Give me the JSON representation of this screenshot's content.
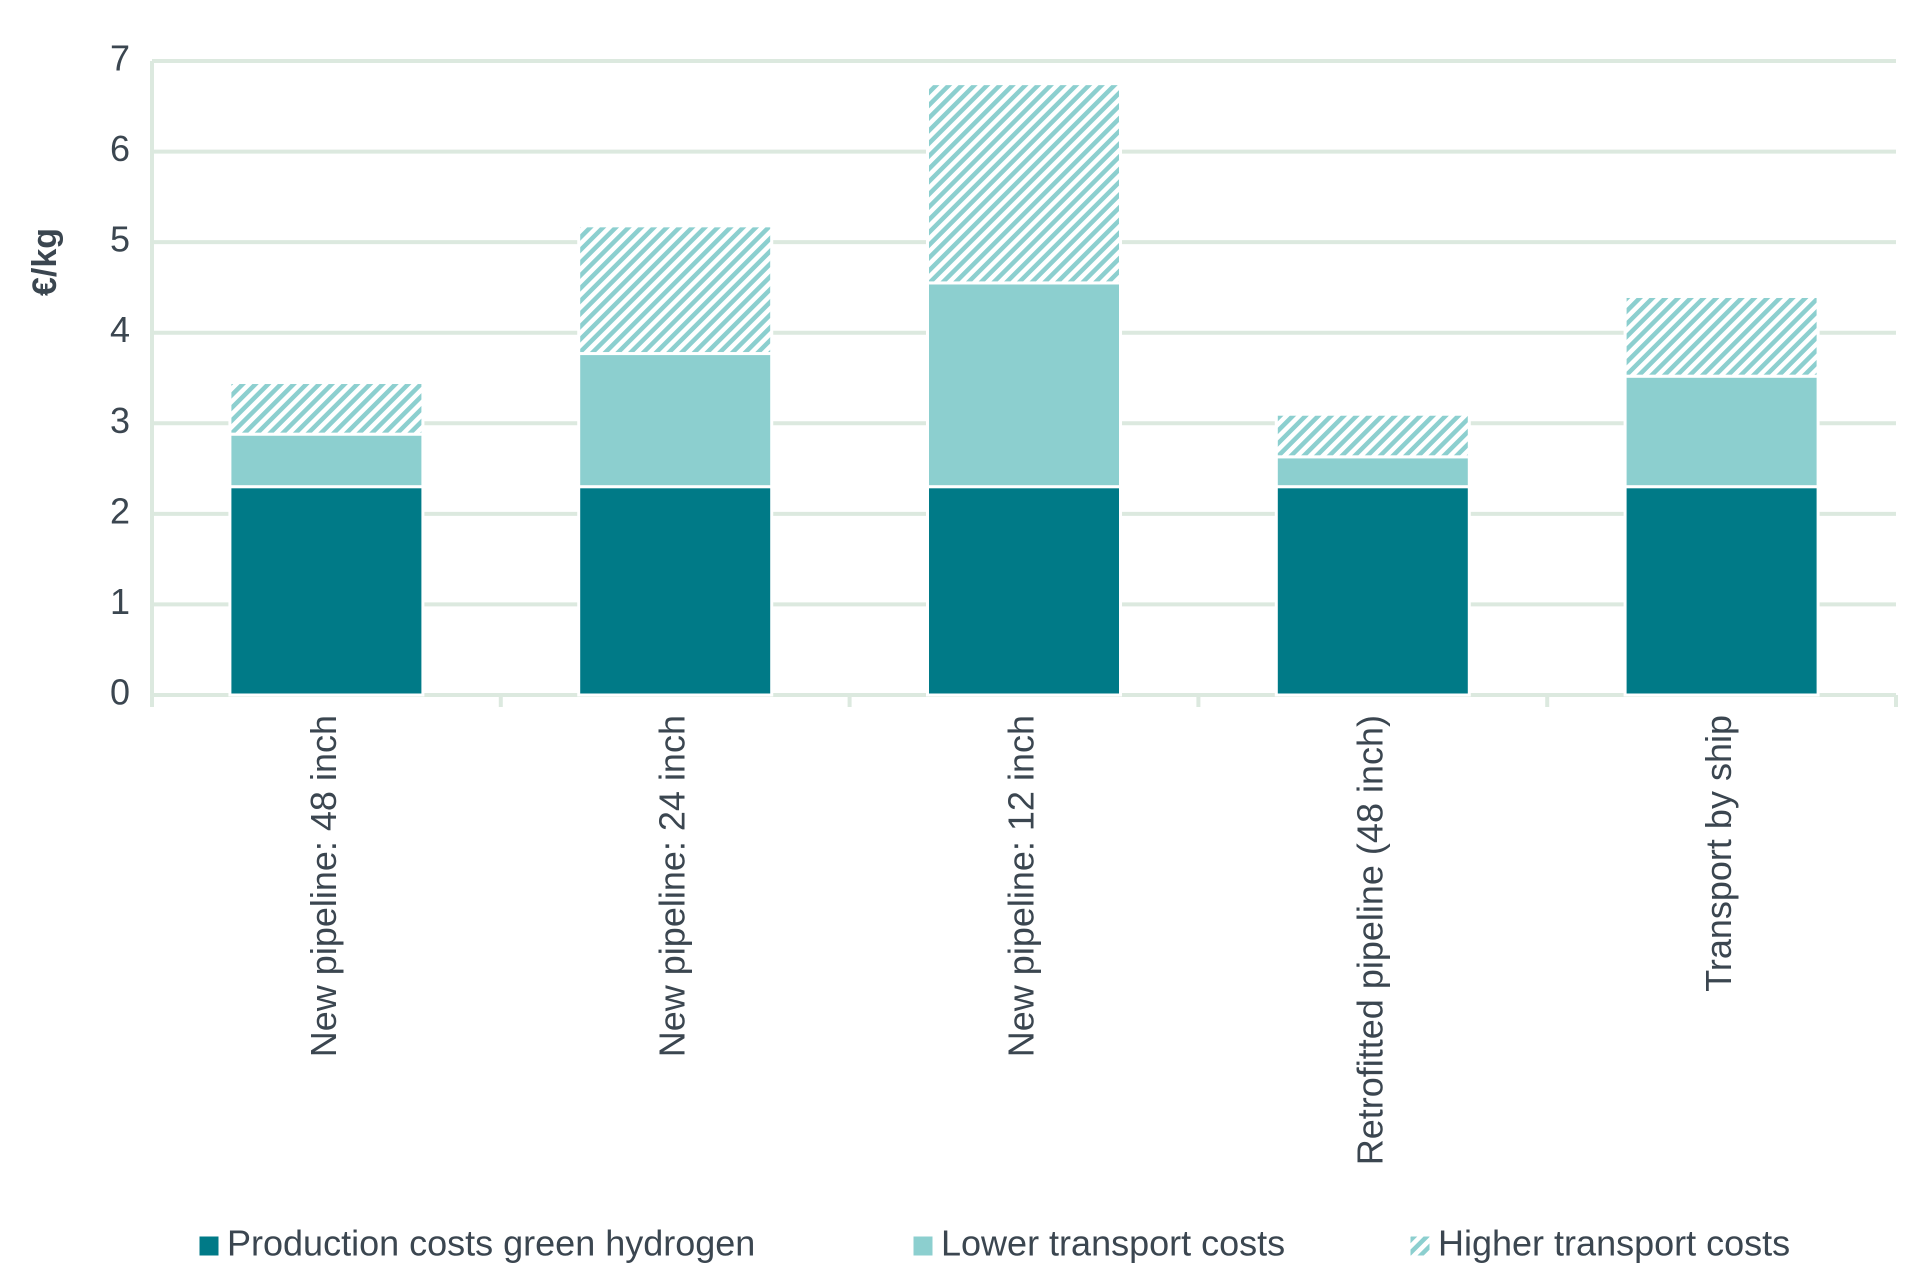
{
  "chart_data": {
    "type": "stacked_bar",
    "y_label": "€/kg",
    "categories": [
      "New pipeline: 48 inch",
      "New pipeline: 24 inch",
      "New pipeline: 12 inch",
      "Retrofitted pipeline (48 inch)",
      "Transport by ship"
    ],
    "series": [
      {
        "name": "Production costs green hydrogen",
        "color": "#007a87",
        "values": [
          2.3,
          2.3,
          2.3,
          2.3,
          2.3
        ]
      },
      {
        "name": "Lower transport costs",
        "color": "#8ccfcf",
        "values": [
          0.58,
          1.47,
          2.25,
          0.33,
          1.22
        ]
      },
      {
        "name": "Higher transport costs",
        "color": "#8ccfcf",
        "pattern": "hatch",
        "values": [
          0.57,
          1.41,
          2.2,
          0.47,
          0.88
        ]
      }
    ],
    "ylim": [
      0,
      7
    ],
    "yticks": [
      0,
      1,
      2,
      3,
      4,
      5,
      6,
      7
    ],
    "grid": true,
    "legend": "bottom"
  }
}
